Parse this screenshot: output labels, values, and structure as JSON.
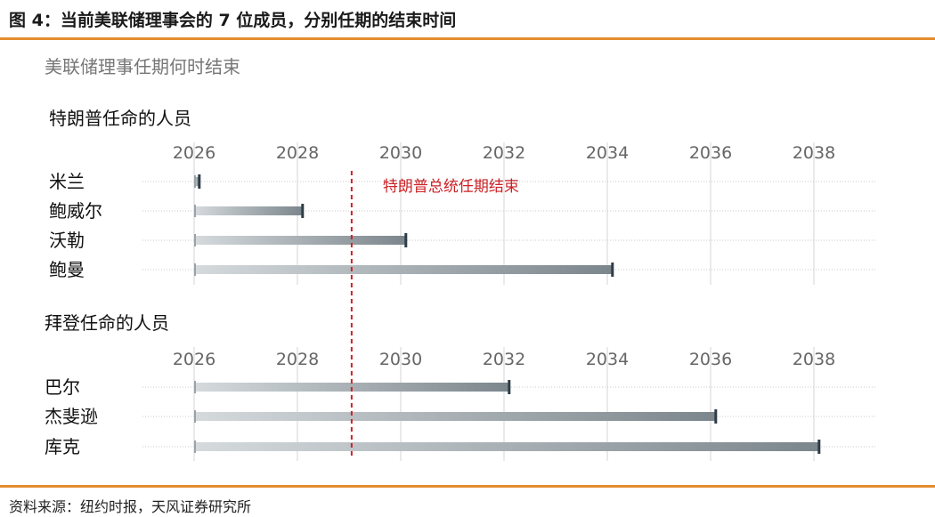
{
  "figure": {
    "title": "图 4：当前美联储理事会的 7 位成员，分别任期的结束时间",
    "source": "资料来源：纽约时报，天风证券研究所"
  },
  "colors": {
    "rule": "#e48d2f",
    "bar_start": "#d5dadd",
    "bar_end": "#7b868c",
    "annotation": "#cc2227",
    "grid": "#e3e3e3"
  },
  "chart_data": {
    "type": "bar",
    "orientation": "horizontal",
    "title": "美联储理事任期何时结束",
    "xlim": [
      2025,
      2039.5
    ],
    "ticks": [
      "2026",
      "2028",
      "2030",
      "2032",
      "2034",
      "2036",
      "2038"
    ],
    "panels": [
      {
        "title": "特朗普任命的人员",
        "categories": [
          "米兰",
          "鲍威尔",
          "沃勒",
          "鲍曼"
        ],
        "start": 2026,
        "values": [
          2026.1,
          2028.1,
          2030.1,
          2034.1
        ]
      },
      {
        "title": "拜登任命的人员",
        "categories": [
          "巴尔",
          "杰斐逊",
          "库克"
        ],
        "start": 2026,
        "values": [
          2032.1,
          2036.1,
          2038.1
        ]
      }
    ],
    "annotation": {
      "label": "特朗普总统任期结束",
      "x": 2029.05
    }
  }
}
